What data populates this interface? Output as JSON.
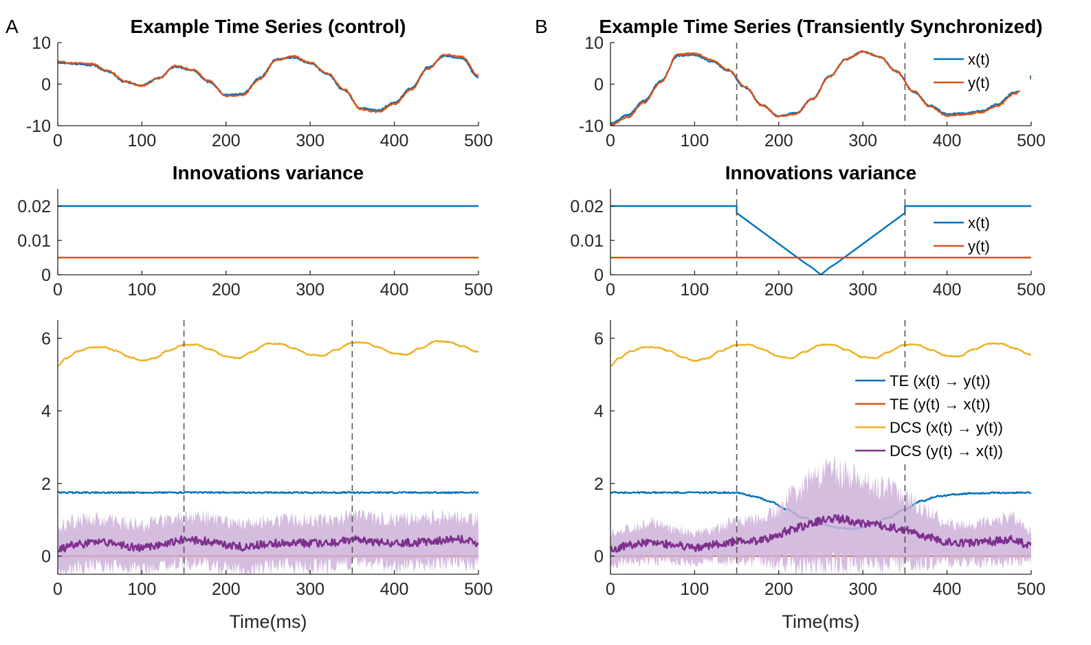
{
  "colors": {
    "blue": "#0072BD",
    "orange": "#D95319",
    "yellow": "#EDB120",
    "purple": "#7E2F8E",
    "purple_band": "#CDB2D9",
    "yellow_band": "#F6DC8F"
  },
  "panels": [
    {
      "id": "A",
      "label": "A"
    },
    {
      "id": "B",
      "label": "B"
    }
  ],
  "chart_data": [
    {
      "panel": "A",
      "type": "line",
      "title": "Example Time Series (control)",
      "xlabel": "",
      "ylabel": "",
      "xlim": [
        0,
        500
      ],
      "ylim": [
        -10,
        10
      ],
      "xticks": [
        0,
        100,
        200,
        300,
        400,
        500
      ],
      "yticks": [
        -10,
        0,
        10
      ],
      "series": [
        {
          "name": "x(t)",
          "color": "blue",
          "x": [
            0,
            20,
            40,
            60,
            80,
            100,
            120,
            140,
            160,
            180,
            200,
            220,
            240,
            260,
            280,
            300,
            320,
            340,
            360,
            380,
            400,
            420,
            440,
            460,
            480,
            500
          ],
          "y": [
            5.2,
            4.9,
            4.6,
            3.0,
            0.5,
            -0.3,
            1.5,
            4.2,
            3.3,
            0.5,
            -2.6,
            -2.3,
            1.5,
            6.0,
            6.4,
            5.0,
            2.5,
            -1.5,
            -5.8,
            -6.3,
            -4.5,
            -1.0,
            4.0,
            6.8,
            6.3,
            1.6
          ]
        },
        {
          "name": "y(t)",
          "color": "orange",
          "x": [
            0,
            20,
            40,
            60,
            80,
            100,
            120,
            140,
            160,
            180,
            200,
            220,
            240,
            260,
            280,
            300,
            320,
            340,
            360,
            380,
            400,
            420,
            440,
            460,
            480,
            500
          ],
          "y": [
            5.4,
            5.0,
            4.9,
            3.2,
            0.7,
            -0.4,
            1.4,
            4.4,
            3.5,
            0.8,
            -2.9,
            -2.6,
            1.2,
            5.8,
            6.7,
            5.2,
            2.7,
            -1.2,
            -6.0,
            -6.7,
            -4.8,
            -1.3,
            3.7,
            7.1,
            6.6,
            2.0
          ]
        }
      ]
    },
    {
      "panel": "A",
      "type": "line",
      "title": "Innovations variance",
      "xlabel": "",
      "ylabel": "",
      "xlim": [
        0,
        500
      ],
      "ylim": [
        0,
        0.025
      ],
      "xticks": [
        0,
        100,
        200,
        300,
        400,
        500
      ],
      "yticks": [
        0,
        0.01,
        0.02
      ],
      "series": [
        {
          "name": "x(t)",
          "color": "blue",
          "x": [
            0,
            500
          ],
          "y": [
            0.02,
            0.02
          ]
        },
        {
          "name": "y(t)",
          "color": "orange",
          "x": [
            0,
            500
          ],
          "y": [
            0.005,
            0.005
          ]
        }
      ]
    },
    {
      "panel": "A",
      "type": "line",
      "title": "",
      "xlabel": "Time(ms)",
      "ylabel": "",
      "xlim": [
        0,
        500
      ],
      "ylim": [
        -0.5,
        6.5
      ],
      "xticks": [
        0,
        100,
        200,
        300,
        400,
        500
      ],
      "yticks": [
        0,
        2,
        4,
        6
      ],
      "vlines": [
        150,
        350
      ],
      "series": [
        {
          "name": "TE (x(t) → y(t))",
          "color": "blue",
          "x": [
            0,
            500
          ],
          "y": [
            1.75,
            1.75
          ]
        },
        {
          "name": "TE (y(t) → x(t))",
          "color": "orange",
          "x": [
            0,
            500
          ],
          "y": [
            0.0,
            0.0
          ]
        },
        {
          "name": "DCS (x(t) → y(t))",
          "color": "yellow",
          "x": [
            0,
            10,
            25,
            40,
            55,
            70,
            85,
            100,
            115,
            130,
            150,
            165,
            180,
            200,
            215,
            230,
            250,
            265,
            280,
            300,
            315,
            330,
            350,
            365,
            380,
            400,
            415,
            430,
            450,
            465,
            480,
            500
          ],
          "y": [
            5.25,
            5.45,
            5.65,
            5.75,
            5.75,
            5.65,
            5.48,
            5.38,
            5.45,
            5.65,
            5.82,
            5.82,
            5.7,
            5.5,
            5.45,
            5.62,
            5.85,
            5.85,
            5.72,
            5.55,
            5.52,
            5.68,
            5.88,
            5.88,
            5.75,
            5.58,
            5.55,
            5.72,
            5.92,
            5.9,
            5.78,
            5.62
          ]
        },
        {
          "name": "DCS (y(t) → x(t))",
          "color": "purple",
          "x": [
            0,
            25,
            50,
            75,
            100,
            125,
            150,
            175,
            200,
            225,
            250,
            275,
            300,
            325,
            350,
            375,
            400,
            425,
            450,
            475,
            500
          ],
          "y": [
            0.2,
            0.32,
            0.4,
            0.3,
            0.22,
            0.32,
            0.45,
            0.42,
            0.3,
            0.25,
            0.34,
            0.38,
            0.35,
            0.36,
            0.45,
            0.4,
            0.36,
            0.38,
            0.42,
            0.48,
            0.36
          ],
          "band": 0.75
        }
      ]
    },
    {
      "panel": "B",
      "type": "line",
      "title": "Example Time Series (Transiently Synchronized)",
      "xlabel": "",
      "ylabel": "",
      "xlim": [
        0,
        500
      ],
      "ylim": [
        -10,
        10
      ],
      "xticks": [
        0,
        100,
        200,
        300,
        400,
        500
      ],
      "yticks": [
        -10,
        0,
        10
      ],
      "vlines": [
        150,
        350
      ],
      "legend": [
        "x(t)",
        "y(t)"
      ],
      "series": [
        {
          "name": "x(t)",
          "color": "blue",
          "x": [
            0,
            20,
            40,
            60,
            80,
            100,
            120,
            140,
            160,
            180,
            200,
            220,
            240,
            260,
            280,
            300,
            320,
            340,
            360,
            380,
            400,
            420,
            440,
            460,
            480,
            500
          ],
          "y": [
            -9.5,
            -7.5,
            -4.0,
            0.8,
            6.8,
            7.0,
            5.5,
            3.3,
            -0.8,
            -5.0,
            -7.6,
            -7.0,
            -3.5,
            1.8,
            6.0,
            7.8,
            6.5,
            3.0,
            -1.8,
            -5.2,
            -7.2,
            -7.0,
            -6.5,
            -4.8,
            -2.0,
            1.8
          ]
        },
        {
          "name": "y(t)",
          "color": "orange",
          "x": [
            0,
            20,
            40,
            60,
            80,
            100,
            120,
            140,
            160,
            180,
            200,
            220,
            240,
            260,
            280,
            300,
            320,
            340,
            360,
            380,
            400,
            420,
            440,
            460,
            480,
            500
          ],
          "y": [
            -9.8,
            -8.0,
            -4.4,
            0.5,
            7.2,
            7.4,
            5.8,
            3.5,
            -0.6,
            -5.1,
            -7.8,
            -7.2,
            -3.6,
            1.7,
            6.0,
            7.9,
            6.6,
            3.1,
            -1.7,
            -5.4,
            -7.6,
            -7.3,
            -6.8,
            -5.2,
            -2.3,
            1.5
          ]
        }
      ]
    },
    {
      "panel": "B",
      "type": "line",
      "title": "Innovations variance",
      "xlabel": "",
      "ylabel": "",
      "xlim": [
        0,
        500
      ],
      "ylim": [
        0,
        0.025
      ],
      "xticks": [
        0,
        100,
        200,
        300,
        400,
        500
      ],
      "yticks": [
        0,
        0.01,
        0.02
      ],
      "vlines": [
        150,
        350
      ],
      "legend": [
        "x(t)",
        "y(t)"
      ],
      "series": [
        {
          "name": "x(t)",
          "color": "blue",
          "x": [
            0,
            150,
            150,
            160,
            170,
            180,
            190,
            200,
            210,
            220,
            230,
            240,
            250,
            260,
            270,
            280,
            290,
            300,
            310,
            320,
            330,
            340,
            350,
            350,
            500
          ],
          "y": [
            0.02,
            0.02,
            0.018,
            0.0162,
            0.0144,
            0.0126,
            0.0108,
            0.009,
            0.0072,
            0.0054,
            0.0036,
            0.002,
            0.0,
            0.002,
            0.0036,
            0.0054,
            0.0072,
            0.009,
            0.0108,
            0.0126,
            0.0144,
            0.0162,
            0.018,
            0.02,
            0.02
          ]
        },
        {
          "name": "y(t)",
          "color": "orange",
          "x": [
            0,
            500
          ],
          "y": [
            0.005,
            0.005
          ]
        }
      ]
    },
    {
      "panel": "B",
      "type": "line",
      "title": "",
      "xlabel": "Time(ms)",
      "ylabel": "",
      "xlim": [
        0,
        500
      ],
      "ylim": [
        -0.5,
        6.5
      ],
      "xticks": [
        0,
        100,
        200,
        300,
        400,
        500
      ],
      "yticks": [
        0,
        2,
        4,
        6
      ],
      "vlines": [
        150,
        350
      ],
      "legend": [
        "TE (x(t) → y(t))",
        "TE (y(t) → x(t))",
        "DCS (x(t) → y(t))",
        "DCS (y(t) → x(t))"
      ],
      "series": [
        {
          "name": "TE (x(t) → y(t))",
          "color": "blue",
          "x": [
            0,
            150,
            170,
            190,
            210,
            230,
            250,
            270,
            290,
            310,
            330,
            350,
            370,
            390,
            410,
            430,
            460,
            500
          ],
          "y": [
            1.75,
            1.75,
            1.65,
            1.5,
            1.28,
            1.05,
            0.88,
            0.78,
            0.75,
            0.85,
            1.05,
            1.3,
            1.52,
            1.65,
            1.7,
            1.73,
            1.74,
            1.75
          ]
        },
        {
          "name": "TE (y(t) → x(t))",
          "color": "orange",
          "x": [
            0,
            500
          ],
          "y": [
            0.0,
            0.0
          ]
        },
        {
          "name": "DCS (x(t) → y(t))",
          "color": "yellow",
          "x": [
            0,
            10,
            25,
            40,
            55,
            70,
            85,
            100,
            115,
            130,
            150,
            165,
            180,
            200,
            215,
            230,
            250,
            265,
            280,
            300,
            315,
            330,
            350,
            365,
            380,
            400,
            415,
            430,
            450,
            465,
            480,
            500
          ],
          "y": [
            5.25,
            5.45,
            5.65,
            5.75,
            5.75,
            5.65,
            5.48,
            5.38,
            5.45,
            5.65,
            5.82,
            5.82,
            5.7,
            5.5,
            5.45,
            5.62,
            5.82,
            5.82,
            5.68,
            5.48,
            5.45,
            5.62,
            5.82,
            5.82,
            5.68,
            5.52,
            5.5,
            5.68,
            5.85,
            5.85,
            5.72,
            5.55
          ]
        },
        {
          "name": "DCS (y(t) → x(t))",
          "color": "purple",
          "x": [
            0,
            25,
            50,
            75,
            100,
            125,
            150,
            175,
            200,
            210,
            225,
            240,
            250,
            260,
            275,
            290,
            300,
            315,
            330,
            350,
            375,
            400,
            425,
            450,
            475,
            500
          ],
          "y": [
            0.2,
            0.32,
            0.4,
            0.3,
            0.22,
            0.32,
            0.4,
            0.42,
            0.55,
            0.7,
            0.8,
            0.92,
            0.98,
            1.05,
            1.02,
            0.95,
            0.9,
            0.85,
            0.8,
            0.72,
            0.55,
            0.38,
            0.35,
            0.4,
            0.46,
            0.3
          ],
          "band_scale": true
        }
      ]
    }
  ]
}
